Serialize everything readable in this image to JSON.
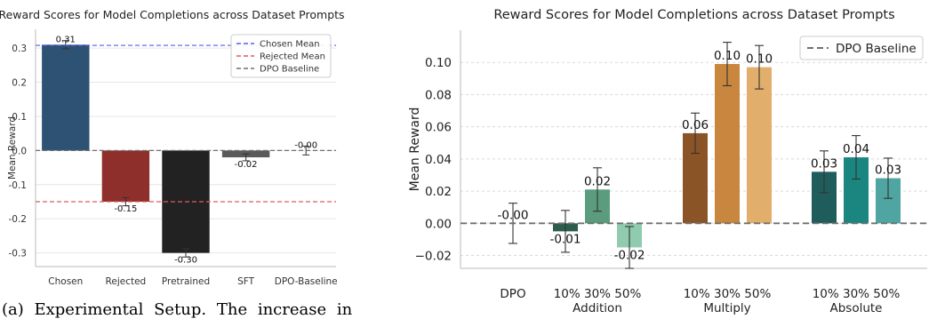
{
  "caption": "(a) Experimental Setup. The increase in",
  "chart_data": [
    {
      "type": "bar",
      "title": "Reward Scores for Model Completions across Dataset Prompts",
      "xlabel": "",
      "ylabel": "Mean Reward",
      "categories": [
        "Chosen",
        "Rejected",
        "Pretrained",
        "SFT",
        "DPO-Baseline"
      ],
      "values": [
        0.31,
        -0.15,
        -0.3,
        -0.02,
        -0.0
      ],
      "value_labels": [
        "0.31",
        "-0.15",
        "-0.30",
        "-0.02",
        "-0.00"
      ],
      "errors": [
        0.012,
        0.012,
        0.012,
        0.01,
        0.013
      ],
      "colors": [
        "#2d5274",
        "#8e2f2c",
        "#222222",
        "#5a5a5a",
        "#5a5a5a"
      ],
      "ylim": [
        -0.34,
        0.355
      ],
      "yticks": [
        "-0.3",
        "-0.2",
        "-0.1",
        "0.0",
        "0.1",
        "0.2",
        "0.3"
      ],
      "reference_lines": [
        {
          "name": "Chosen Mean",
          "value": 0.308,
          "color": "#5b5be6"
        },
        {
          "name": "Rejected Mean",
          "value": -0.15,
          "color": "#e25a5a"
        },
        {
          "name": "DPO Baseline",
          "value": 0.0,
          "color": "#707070"
        }
      ],
      "legend_position": "top-right",
      "grid": true
    },
    {
      "type": "bar",
      "title": "Reward Scores for Model Completions across Dataset Prompts",
      "xlabel": "",
      "ylabel": "Mean Reward",
      "ylim": [
        -0.028,
        0.12
      ],
      "yticks": [
        "−0.02",
        "0.00",
        "0.02",
        "0.04",
        "0.06",
        "0.08",
        "0.10"
      ],
      "groups": [
        {
          "name": "",
          "label": "DPO",
          "bars": [
            {
              "label": "",
              "value": -0.0,
              "value_label": "-0.00",
              "error": 0.0125,
              "color": "none"
            }
          ]
        },
        {
          "name": "Addition",
          "label": "10% 30% 50%",
          "bars": [
            {
              "label": "10%",
              "value": -0.005,
              "value_label": "-0.01",
              "error": 0.013,
              "color": "#2d5e4c"
            },
            {
              "label": "30%",
              "value": 0.021,
              "value_label": "0.02",
              "error": 0.0135,
              "color": "#5c9c7e"
            },
            {
              "label": "50%",
              "value": -0.015,
              "value_label": "-0.02",
              "error": 0.013,
              "color": "#90cbb0"
            }
          ]
        },
        {
          "name": "Multiply",
          "label": "10% 30% 50%",
          "bars": [
            {
              "label": "10%",
              "value": 0.056,
              "value_label": "0.06",
              "error": 0.0125,
              "color": "#8b5427"
            },
            {
              "label": "30%",
              "value": 0.099,
              "value_label": "0.10",
              "error": 0.0135,
              "color": "#c8863e"
            },
            {
              "label": "50%",
              "value": 0.097,
              "value_label": "0.10",
              "error": 0.0135,
              "color": "#e2ae6c"
            }
          ]
        },
        {
          "name": "Absolute",
          "label": "10% 30% 50%",
          "bars": [
            {
              "label": "10%",
              "value": 0.032,
              "value_label": "0.03",
              "error": 0.013,
              "color": "#1e5d5c"
            },
            {
              "label": "30%",
              "value": 0.041,
              "value_label": "0.04",
              "error": 0.0135,
              "color": "#1b8680"
            },
            {
              "label": "50%",
              "value": 0.028,
              "value_label": "0.03",
              "error": 0.0125,
              "color": "#4ea5a2"
            }
          ]
        }
      ],
      "reference_lines": [
        {
          "name": "DPO Baseline",
          "value": 0.0,
          "color": "#707070"
        }
      ],
      "legend_position": "top-right",
      "grid": true
    }
  ]
}
